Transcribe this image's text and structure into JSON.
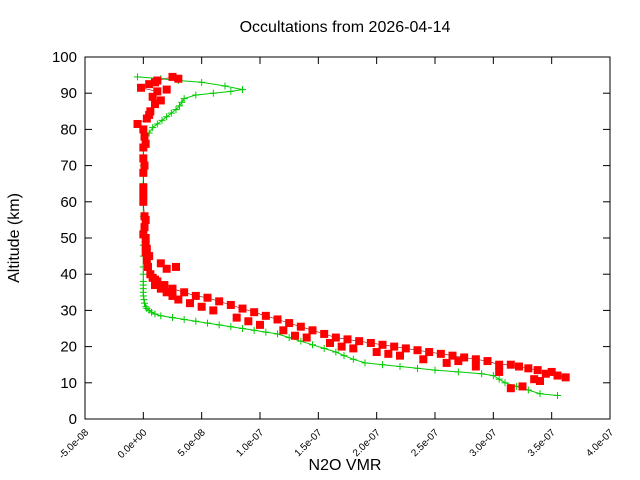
{
  "chart_data": {
    "type": "scatter",
    "title": "Occultations from 2026-04-14",
    "xlabel": "N2O VMR",
    "ylabel": "Altitude (km)",
    "xlim": [
      -5e-08,
      4e-07
    ],
    "ylim": [
      0,
      100
    ],
    "x_ticks": [
      -5e-08,
      0.0,
      5e-08,
      1e-07,
      1.5e-07,
      2e-07,
      2.5e-07,
      3e-07,
      3.5e-07,
      4e-07
    ],
    "x_tick_labels": [
      "-5.0e-08",
      "0.0e+00",
      "5.0e-08",
      "1.0e-07",
      "1.5e-07",
      "2.0e-07",
      "2.5e-07",
      "3.0e-07",
      "3.5e-07",
      "4.0e-07"
    ],
    "y_ticks": [
      0,
      10,
      20,
      30,
      40,
      50,
      60,
      70,
      80,
      90,
      100
    ],
    "y_tick_labels": [
      "0",
      "10",
      "20",
      "30",
      "40",
      "50",
      "60",
      "70",
      "80",
      "90",
      "100"
    ],
    "grid": false,
    "legend": "none",
    "series": [
      {
        "color": "#00cc00",
        "marker": "plus",
        "points": [
          [
            3.55e-07,
            6.5
          ],
          [
            3.4e-07,
            7.0
          ],
          [
            3.3e-07,
            8.0
          ],
          [
            3.2e-07,
            9.0
          ],
          [
            3.1e-07,
            10.0
          ],
          [
            3.05e-07,
            11.0
          ],
          [
            3e-07,
            12.0
          ],
          [
            2.9e-07,
            12.5
          ],
          [
            2.7e-07,
            13.0
          ],
          [
            2.5e-07,
            13.5
          ],
          [
            2.35e-07,
            14.0
          ],
          [
            2.2e-07,
            14.5
          ],
          [
            2.05e-07,
            15.0
          ],
          [
            1.9e-07,
            15.5
          ],
          [
            1.8e-07,
            16.5
          ],
          [
            1.72e-07,
            17.5
          ],
          [
            1.65e-07,
            18.5
          ],
          [
            1.55e-07,
            19.5
          ],
          [
            1.45e-07,
            20.5
          ],
          [
            1.35e-07,
            21.5
          ],
          [
            1.25e-07,
            22.5
          ],
          [
            1.15e-07,
            23.5
          ],
          [
            1.05e-07,
            24.0
          ],
          [
            9.5e-08,
            24.5
          ],
          [
            8.5e-08,
            25.0
          ],
          [
            7.5e-08,
            25.5
          ],
          [
            6.5e-08,
            26.0
          ],
          [
            5.5e-08,
            26.5
          ],
          [
            4.5e-08,
            27.0
          ],
          [
            3.5e-08,
            27.5
          ],
          [
            2.5e-08,
            28.0
          ],
          [
            1.5e-08,
            28.5
          ],
          [
            1e-08,
            29.0
          ],
          [
            7e-09,
            29.5
          ],
          [
            5e-09,
            30.0
          ],
          [
            3e-09,
            30.5
          ],
          [
            2e-09,
            31.0
          ],
          [
            1e-09,
            32.0
          ],
          [
            5e-10,
            33.0
          ],
          [
            0.0,
            34.0
          ],
          [
            0.0,
            35.0
          ],
          [
            0.0,
            36.0
          ],
          [
            0.0,
            37.0
          ],
          [
            0.0,
            38.0
          ],
          [
            0.0,
            40.0
          ],
          [
            0.0,
            42.0
          ],
          [
            0.0,
            45.0
          ],
          [
            0.0,
            48.0
          ],
          [
            0.0,
            52.0
          ],
          [
            0.0,
            56.0
          ],
          [
            0.0,
            60.0
          ],
          [
            0.0,
            65.0
          ],
          [
            0.0,
            70.0
          ],
          [
            0.0,
            75.0
          ],
          [
            5e-09,
            79.0
          ],
          [
            8e-09,
            80.5
          ],
          [
            1.2e-08,
            81.5
          ],
          [
            1.6e-08,
            82.5
          ],
          [
            2e-08,
            83.5
          ],
          [
            2.4e-08,
            84.5
          ],
          [
            2.8e-08,
            85.5
          ],
          [
            3.1e-08,
            86.5
          ],
          [
            3.3e-08,
            87.5
          ],
          [
            3.5e-08,
            88.5
          ],
          [
            4.5e-08,
            89.5
          ],
          [
            6e-08,
            90.0
          ],
          [
            7.5e-08,
            90.5
          ],
          [
            8.5e-08,
            91.0
          ],
          [
            7e-08,
            92.0
          ],
          [
            5e-08,
            93.0
          ],
          [
            3e-08,
            93.5
          ],
          [
            1.5e-08,
            94.0
          ],
          [
            -5e-09,
            94.5
          ]
        ]
      },
      {
        "color": "#ff0000",
        "marker": "square",
        "points": [
          [
            3.62e-07,
            11.5
          ],
          [
            3.55e-07,
            12.0
          ],
          [
            3.45e-07,
            12.5
          ],
          [
            3.38e-07,
            13.5
          ],
          [
            3.3e-07,
            14.0
          ],
          [
            3.22e-07,
            14.5
          ],
          [
            3.15e-07,
            15.0
          ],
          [
            3.05e-07,
            15.0
          ],
          [
            2.95e-07,
            16.0
          ],
          [
            2.85e-07,
            16.5
          ],
          [
            2.75e-07,
            17.0
          ],
          [
            2.65e-07,
            17.5
          ],
          [
            2.55e-07,
            18.0
          ],
          [
            2.45e-07,
            18.5
          ],
          [
            2.35e-07,
            19.0
          ],
          [
            2.25e-07,
            19.5
          ],
          [
            2.15e-07,
            20.0
          ],
          [
            2.05e-07,
            20.5
          ],
          [
            1.95e-07,
            21.0
          ],
          [
            1.85e-07,
            21.5
          ],
          [
            1.75e-07,
            22.0
          ],
          [
            1.65e-07,
            22.5
          ],
          [
            1.55e-07,
            23.5
          ],
          [
            1.45e-07,
            24.5
          ],
          [
            1.35e-07,
            25.5
          ],
          [
            1.25e-07,
            26.5
          ],
          [
            1.15e-07,
            27.5
          ],
          [
            1.05e-07,
            28.5
          ],
          [
            9.5e-08,
            29.5
          ],
          [
            8.5e-08,
            30.5
          ],
          [
            7.5e-08,
            31.5
          ],
          [
            6.5e-08,
            32.5
          ],
          [
            5.5e-08,
            33.5
          ],
          [
            4.5e-08,
            34.0
          ],
          [
            3.5e-08,
            35.0
          ],
          [
            2.5e-08,
            36.0
          ],
          [
            1.8e-08,
            37.0
          ],
          [
            1.2e-08,
            38.0
          ],
          [
            8e-09,
            39.0
          ],
          [
            6e-09,
            40.0
          ],
          [
            4e-09,
            42.0
          ],
          [
            3e-09,
            44.0
          ],
          [
            2e-09,
            46.0
          ],
          [
            2e-09,
            48.0
          ],
          [
            2e-09,
            50.0
          ],
          [
            1e-09,
            53.0
          ],
          [
            1e-09,
            56.0
          ],
          [
            0.0,
            60.0
          ],
          [
            0.0,
            64.0
          ],
          [
            0.0,
            68.0
          ],
          [
            0.0,
            72.0
          ],
          [
            0.0,
            75.0
          ],
          [
            1e-09,
            78.0
          ],
          [
            0.0,
            80.0
          ],
          [
            -5e-09,
            81.5
          ],
          [
            3e-09,
            83.0
          ],
          [
            6e-09,
            85.0
          ],
          [
            1e-08,
            87.0
          ],
          [
            8e-09,
            89.0
          ],
          [
            1.2e-08,
            90.5
          ],
          [
            -2e-09,
            91.5
          ],
          [
            5e-09,
            92.5
          ],
          [
            1.2e-08,
            93.5
          ],
          [
            2.5e-08,
            94.5
          ],
          [
            3e-08,
            94.0
          ],
          [
            3.25e-07,
            9.0
          ],
          [
            3.15e-07,
            8.5
          ],
          [
            3.35e-07,
            11.0
          ],
          [
            3.05e-07,
            13.0
          ],
          [
            2.85e-07,
            14.5
          ],
          [
            2.6e-07,
            15.5
          ],
          [
            2.4e-07,
            16.5
          ],
          [
            2.2e-07,
            17.5
          ],
          [
            2e-07,
            18.5
          ],
          [
            1.8e-07,
            19.5
          ],
          [
            1.6e-07,
            21.0
          ],
          [
            1.4e-07,
            22.5
          ],
          [
            1.2e-07,
            24.5
          ],
          [
            1e-07,
            26.0
          ],
          [
            8e-08,
            28.0
          ],
          [
            6e-08,
            30.0
          ],
          [
            4e-08,
            32.0
          ],
          [
            2.5e-08,
            34.0
          ],
          [
            1.5e-08,
            36.0
          ],
          [
            1e-08,
            38.5
          ],
          [
            2e-08,
            41.5
          ],
          [
            2.8e-08,
            42.0
          ],
          [
            1.5e-08,
            43.0
          ],
          [
            3e-09,
            47.0
          ],
          [
            0.0,
            51.0
          ],
          [
            2e-09,
            55.0
          ],
          [
            0.0,
            62.0
          ],
          [
            1e-09,
            70.0
          ],
          [
            2e-09,
            76.0
          ],
          [
            5e-09,
            84.0
          ],
          [
            1.5e-08,
            88.0
          ],
          [
            2e-08,
            91.0
          ],
          [
            1e-08,
            93.0
          ],
          [
            3.4e-07,
            10.5
          ],
          [
            3.5e-07,
            13.0
          ],
          [
            2.7e-07,
            16.0
          ],
          [
            2.1e-07,
            18.0
          ],
          [
            1.7e-07,
            20.0
          ],
          [
            1.3e-07,
            23.0
          ],
          [
            9e-08,
            27.0
          ],
          [
            5e-08,
            31.0
          ],
          [
            3e-08,
            33.0
          ],
          [
            2e-08,
            35.0
          ],
          [
            1e-08,
            37.0
          ],
          [
            5e-09,
            45.0
          ]
        ]
      }
    ]
  }
}
